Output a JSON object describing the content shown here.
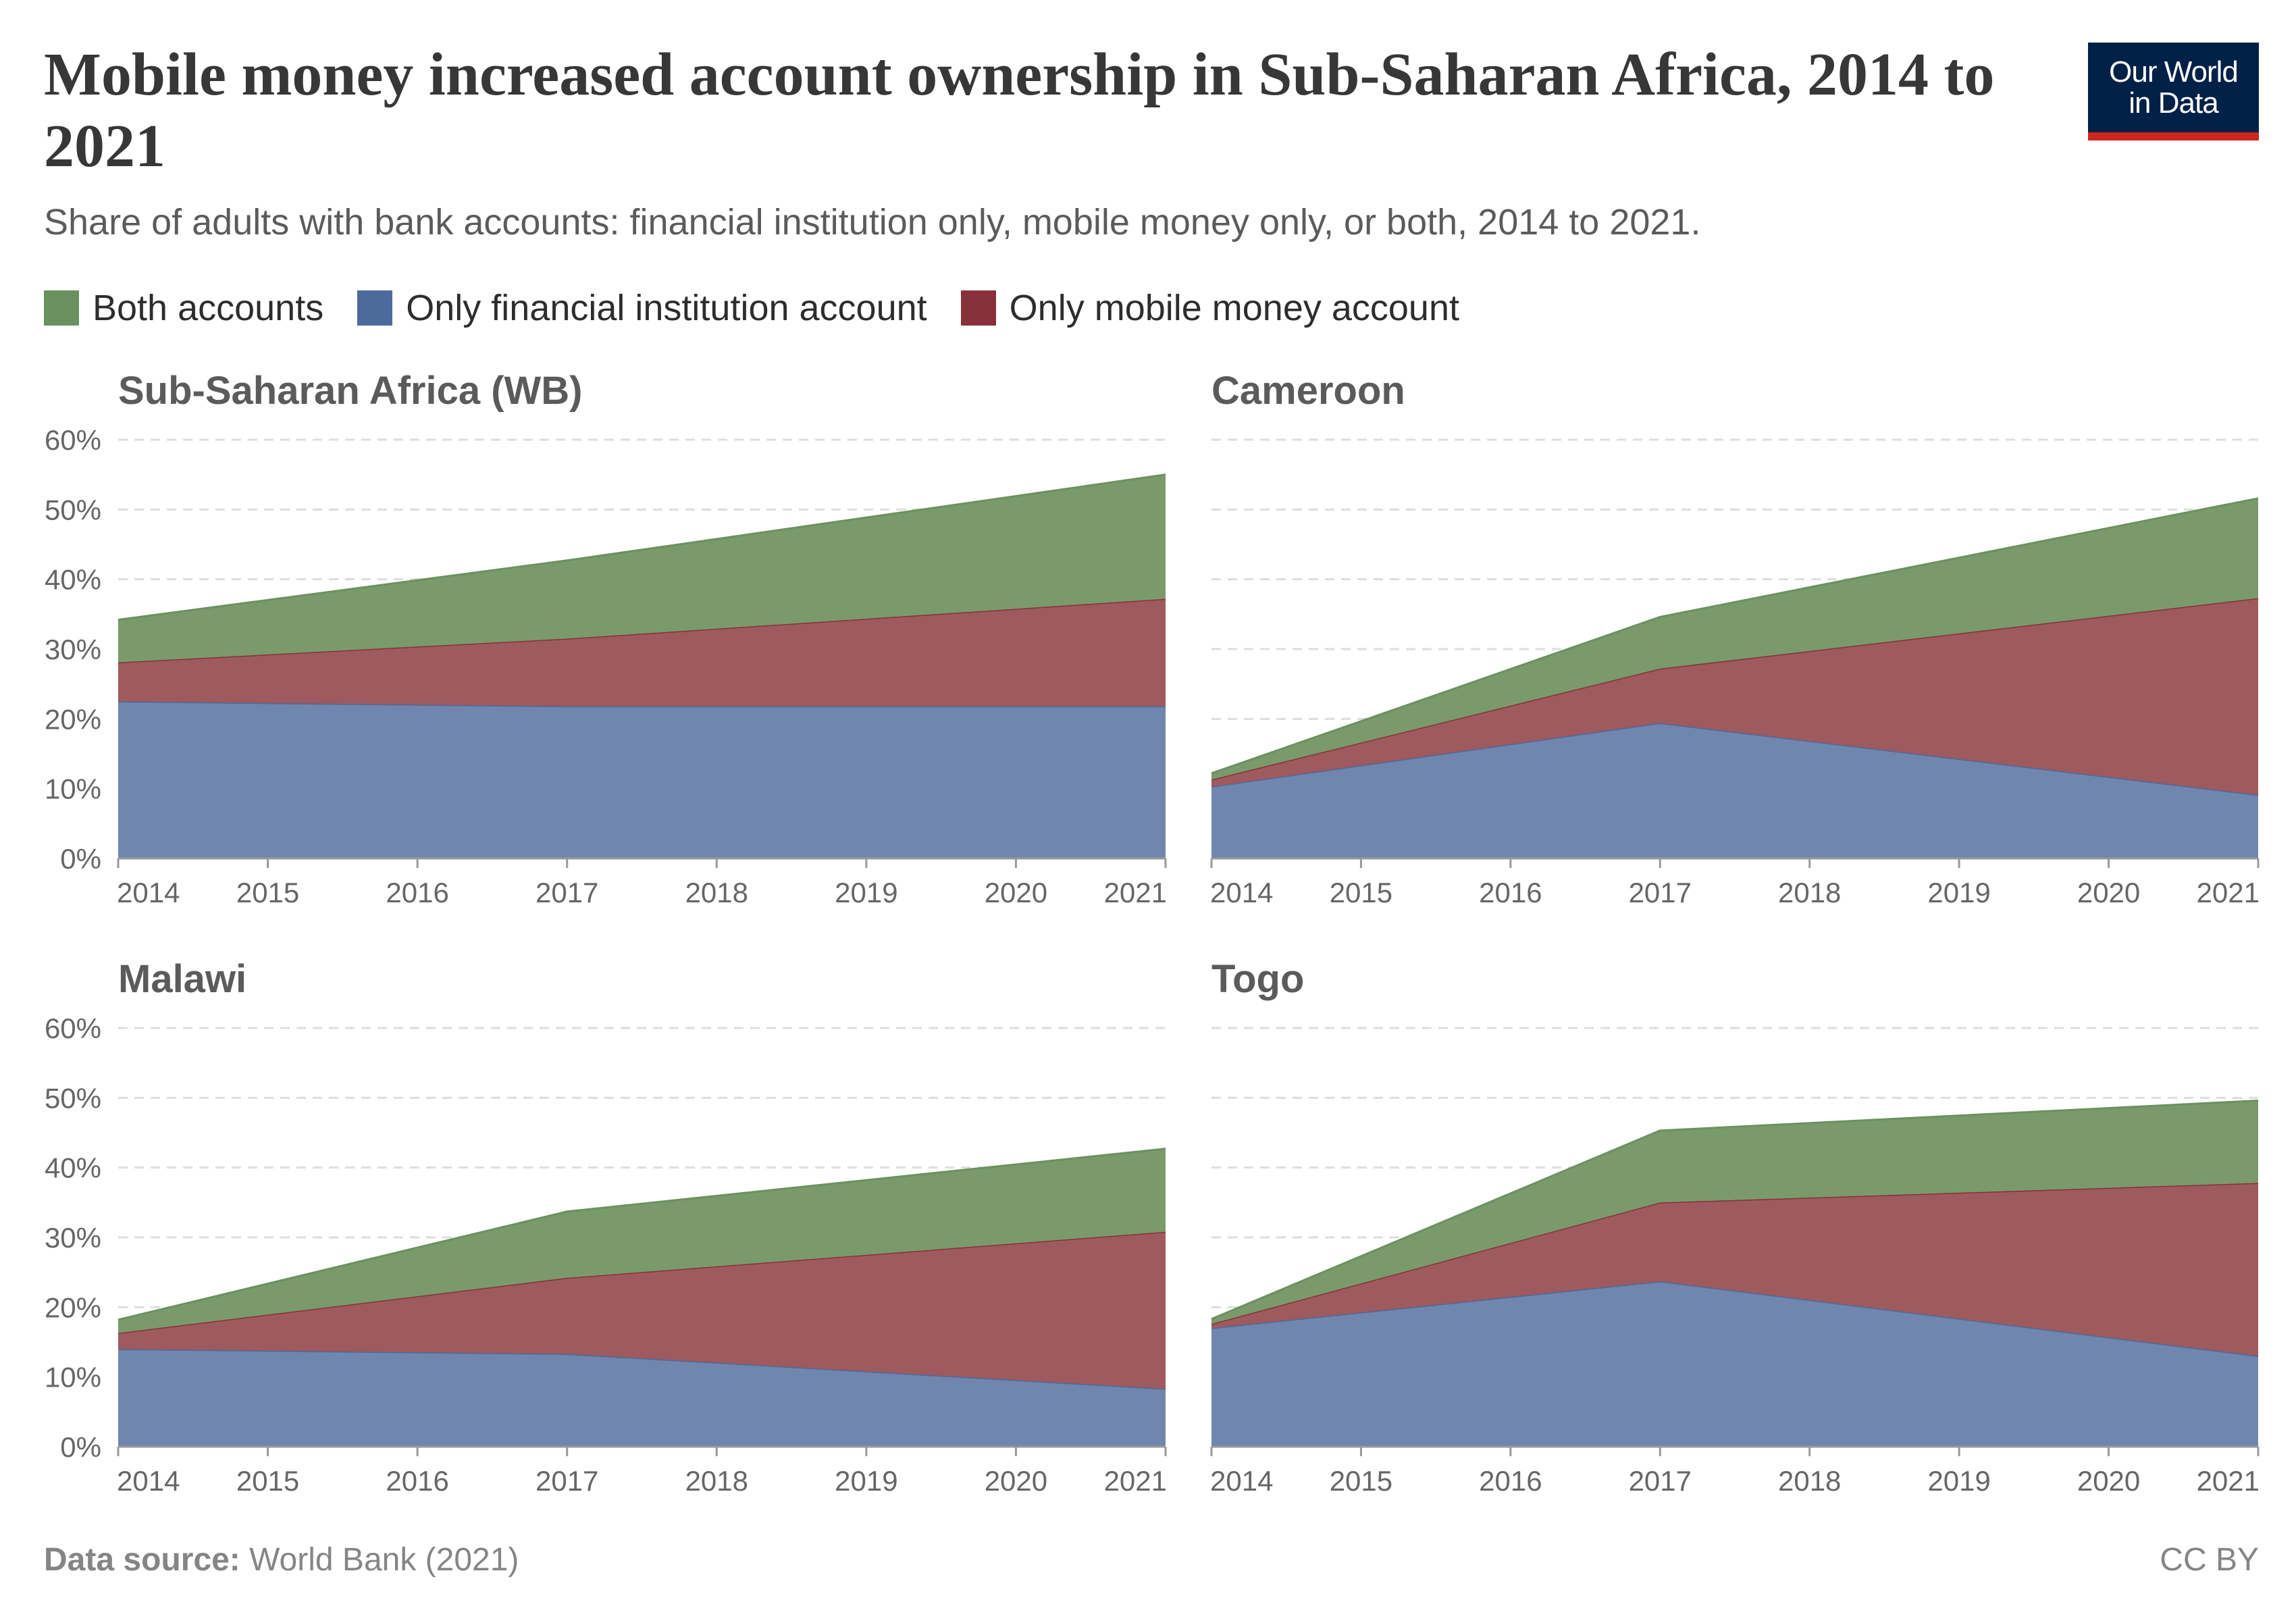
{
  "header": {
    "title": "Mobile money increased account ownership in Sub-Saharan Africa, 2014 to 2021",
    "subtitle": "Share of adults with bank accounts: financial institution only, mobile money only, or both, 2014 to 2021."
  },
  "logo": {
    "line1": "Our World",
    "line2": "in Data"
  },
  "legend": [
    {
      "label": "Both accounts",
      "color": "#6b9160"
    },
    {
      "label": "Only financial institution account",
      "color": "#4c6a9c"
    },
    {
      "label": "Only mobile money account",
      "color": "#883039"
    }
  ],
  "footer": {
    "source_label": "Data source:",
    "source_value": "World Bank (2021)",
    "license": "CC BY"
  },
  "chart_data": [
    {
      "type": "area",
      "title": "Sub-Saharan Africa (WB)",
      "x": [
        2014,
        2017,
        2021
      ],
      "x_ticks": [
        "2014",
        "2015",
        "2016",
        "2017",
        "2018",
        "2019",
        "2020",
        "2021"
      ],
      "y_ticks": [
        "0%",
        "10%",
        "20%",
        "30%",
        "40%",
        "50%",
        "60%"
      ],
      "ylim": [
        0,
        60
      ],
      "stacked": true,
      "series": [
        {
          "name": "Only financial institution account",
          "values": [
            22.5,
            21.8,
            21.8
          ]
        },
        {
          "name": "Only mobile money account",
          "values": [
            5.6,
            9.7,
            15.4
          ]
        },
        {
          "name": "Both accounts",
          "values": [
            6.1,
            11.2,
            17.8
          ]
        }
      ]
    },
    {
      "type": "area",
      "title": "Cameroon",
      "x": [
        2014,
        2017,
        2021
      ],
      "x_ticks": [
        "2014",
        "2015",
        "2016",
        "2017",
        "2018",
        "2019",
        "2020",
        "2021"
      ],
      "y_ticks": [
        "0%",
        "10%",
        "20%",
        "30%",
        "40%",
        "50%",
        "60%"
      ],
      "ylim": [
        0,
        60
      ],
      "stacked": true,
      "series": [
        {
          "name": "Only financial institution account",
          "values": [
            10.3,
            19.4,
            9.1
          ]
        },
        {
          "name": "Only mobile money account",
          "values": [
            1.0,
            7.8,
            28.2
          ]
        },
        {
          "name": "Both accounts",
          "values": [
            0.9,
            7.4,
            14.3
          ]
        }
      ]
    },
    {
      "type": "area",
      "title": "Malawi",
      "x": [
        2014,
        2017,
        2021
      ],
      "x_ticks": [
        "2014",
        "2015",
        "2016",
        "2017",
        "2018",
        "2019",
        "2020",
        "2021"
      ],
      "y_ticks": [
        "0%",
        "10%",
        "20%",
        "30%",
        "40%",
        "50%",
        "60%"
      ],
      "ylim": [
        0,
        60
      ],
      "stacked": true,
      "series": [
        {
          "name": "Only financial institution account",
          "values": [
            14.0,
            13.3,
            8.3
          ]
        },
        {
          "name": "Only mobile money account",
          "values": [
            2.3,
            10.9,
            22.5
          ]
        },
        {
          "name": "Both accounts",
          "values": [
            1.9,
            9.5,
            11.9
          ]
        }
      ]
    },
    {
      "type": "area",
      "title": "Togo",
      "x": [
        2014,
        2017,
        2021
      ],
      "x_ticks": [
        "2014",
        "2015",
        "2016",
        "2017",
        "2018",
        "2019",
        "2020",
        "2021"
      ],
      "y_ticks": [
        "0%",
        "10%",
        "20%",
        "30%",
        "40%",
        "50%",
        "60%"
      ],
      "ylim": [
        0,
        60
      ],
      "stacked": true,
      "series": [
        {
          "name": "Only financial institution account",
          "values": [
            17.0,
            23.7,
            13.0
          ]
        },
        {
          "name": "Only mobile money account",
          "values": [
            0.6,
            11.3,
            24.8
          ]
        },
        {
          "name": "Both accounts",
          "values": [
            0.7,
            10.3,
            11.8
          ]
        }
      ]
    }
  ]
}
